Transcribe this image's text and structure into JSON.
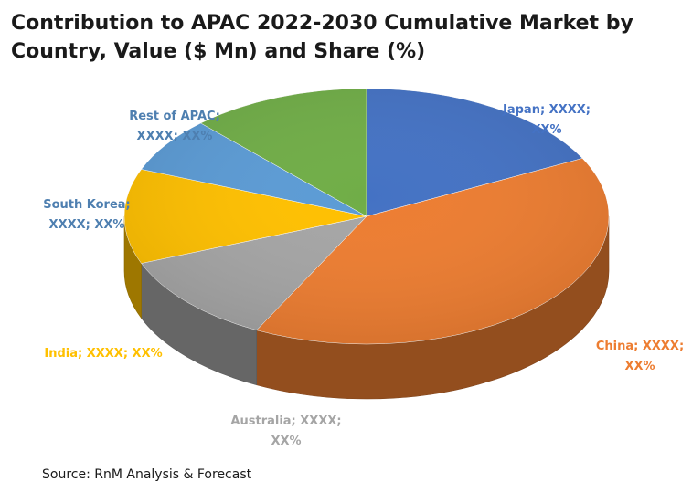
{
  "chart_data": {
    "type": "pie",
    "style": "3d",
    "title": "Contribution to APAC 2022-2030 Cumulative Market by Country, Value ($ Mn) and Share (%)",
    "categories": [
      "Japan",
      "China",
      "Australia",
      "India",
      "South Korea",
      "Rest of APAC"
    ],
    "values": [
      17.5,
      40,
      11.5,
      12,
      7,
      12
    ],
    "colors": [
      "#4472C4",
      "#ED7D31",
      "#A5A5A5",
      "#FFC000",
      "#5B9BD5",
      "#70AD47"
    ],
    "labels": [
      {
        "line1": "Japan; XXXX;",
        "line2": "XX%"
      },
      {
        "line1": "China; XXXX;",
        "line2": "XX%"
      },
      {
        "line1": "Australia; XXXX;",
        "line2": "XX%"
      },
      {
        "line1": "India; XXXX; XX%",
        "line2": ""
      },
      {
        "line1": "South Korea;",
        "line2": "XXXX; XX%"
      },
      {
        "line1": "Rest of APAC;",
        "line2": "XXXX; XX%"
      }
    ],
    "legend": "none"
  },
  "source": "Source: RnM Analysis & Forecast"
}
